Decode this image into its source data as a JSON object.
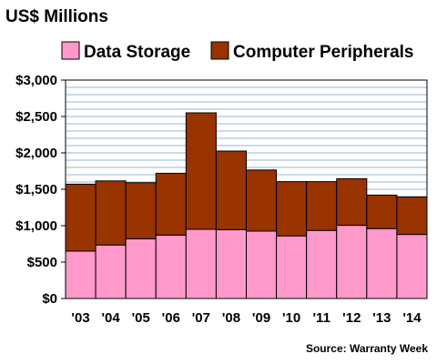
{
  "chart_data": {
    "type": "bar",
    "stacked": true,
    "ylabel": "US$ Millions",
    "categories": [
      "'03",
      "'04",
      "'05",
      "'06",
      "'07",
      "'08",
      "'09",
      "'10",
      "'11",
      "'12",
      "'13",
      "'14"
    ],
    "series": [
      {
        "name": "Data Storage",
        "color": "#ff99cc",
        "values": [
          650,
          735,
          820,
          870,
          950,
          945,
          925,
          860,
          935,
          1005,
          960,
          880
        ]
      },
      {
        "name": "Computer Peripherals",
        "color": "#993300",
        "values": [
          920,
          880,
          770,
          850,
          1600,
          1080,
          840,
          745,
          670,
          640,
          460,
          515
        ]
      }
    ],
    "ylim": [
      0,
      3000
    ],
    "yticks": [
      0,
      500,
      1000,
      1500,
      2000,
      2500,
      3000
    ],
    "ytick_labels": [
      "$0",
      "$500",
      "$1,000",
      "$1,500",
      "$2,000",
      "$2,500",
      "$3,000"
    ],
    "grid": true,
    "legend": "top",
    "source": "Source: Warranty Week"
  }
}
